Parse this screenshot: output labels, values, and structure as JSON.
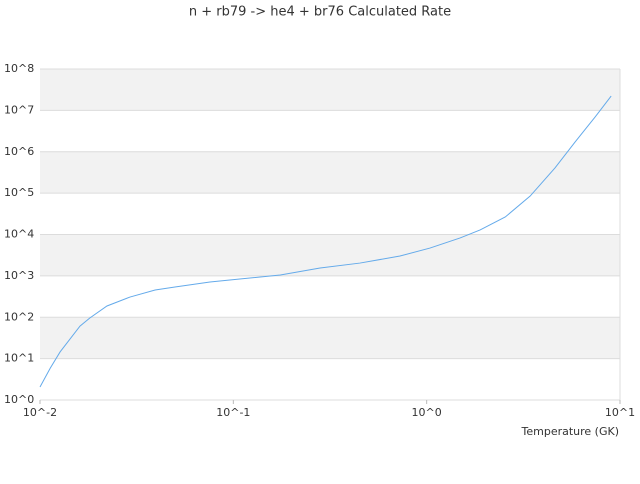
{
  "chart_data": {
    "type": "line",
    "title": "n + rb79 -> he4 + br76 Calculated Rate",
    "x_label": "Temperature (GK)",
    "x": [
      0.01,
      0.0113,
      0.0127,
      0.0161,
      0.0181,
      0.0222,
      0.0292,
      0.0394,
      0.0499,
      0.0757,
      0.108,
      0.175,
      0.281,
      0.452,
      0.728,
      1.04,
      1.49,
      1.89,
      2.55,
      3.43,
      4.61,
      5.86,
      7.43,
      9.0
    ],
    "series": [
      {
        "color": "#64aaea",
        "values": [
          2.06,
          5.9,
          14.5,
          61,
          96,
          187,
          308,
          455,
          537,
          710,
          840,
          1050,
          1550,
          2040,
          3020,
          4700,
          8250,
          12900,
          26500,
          85000,
          405000,
          1730000,
          6900000,
          22200000
        ]
      }
    ],
    "xlog": true,
    "ylog": true,
    "grid": true,
    "band_color": "#f2f2f2",
    "xlim": [
      0.01,
      10
    ],
    "ylim": [
      1,
      100000000
    ],
    "xticks": [
      {
        "value": 0.01,
        "label": "10^-2"
      },
      {
        "value": 0.1,
        "label": "10^-1"
      },
      {
        "value": 1,
        "label": "10^0"
      },
      {
        "value": 10,
        "label": "10^1"
      }
    ],
    "yticks": [
      {
        "value": 1,
        "label": "10^0"
      },
      {
        "value": 10,
        "label": "10^1"
      },
      {
        "value": 100,
        "label": "10^2"
      },
      {
        "value": 1000,
        "label": "10^3"
      },
      {
        "value": 10000,
        "label": "10^4"
      },
      {
        "value": 100000,
        "label": "10^5"
      },
      {
        "value": 1000000,
        "label": "10^6"
      },
      {
        "value": 10000000,
        "label": "10^7"
      },
      {
        "value": 100000000,
        "label": "10^8"
      }
    ]
  }
}
